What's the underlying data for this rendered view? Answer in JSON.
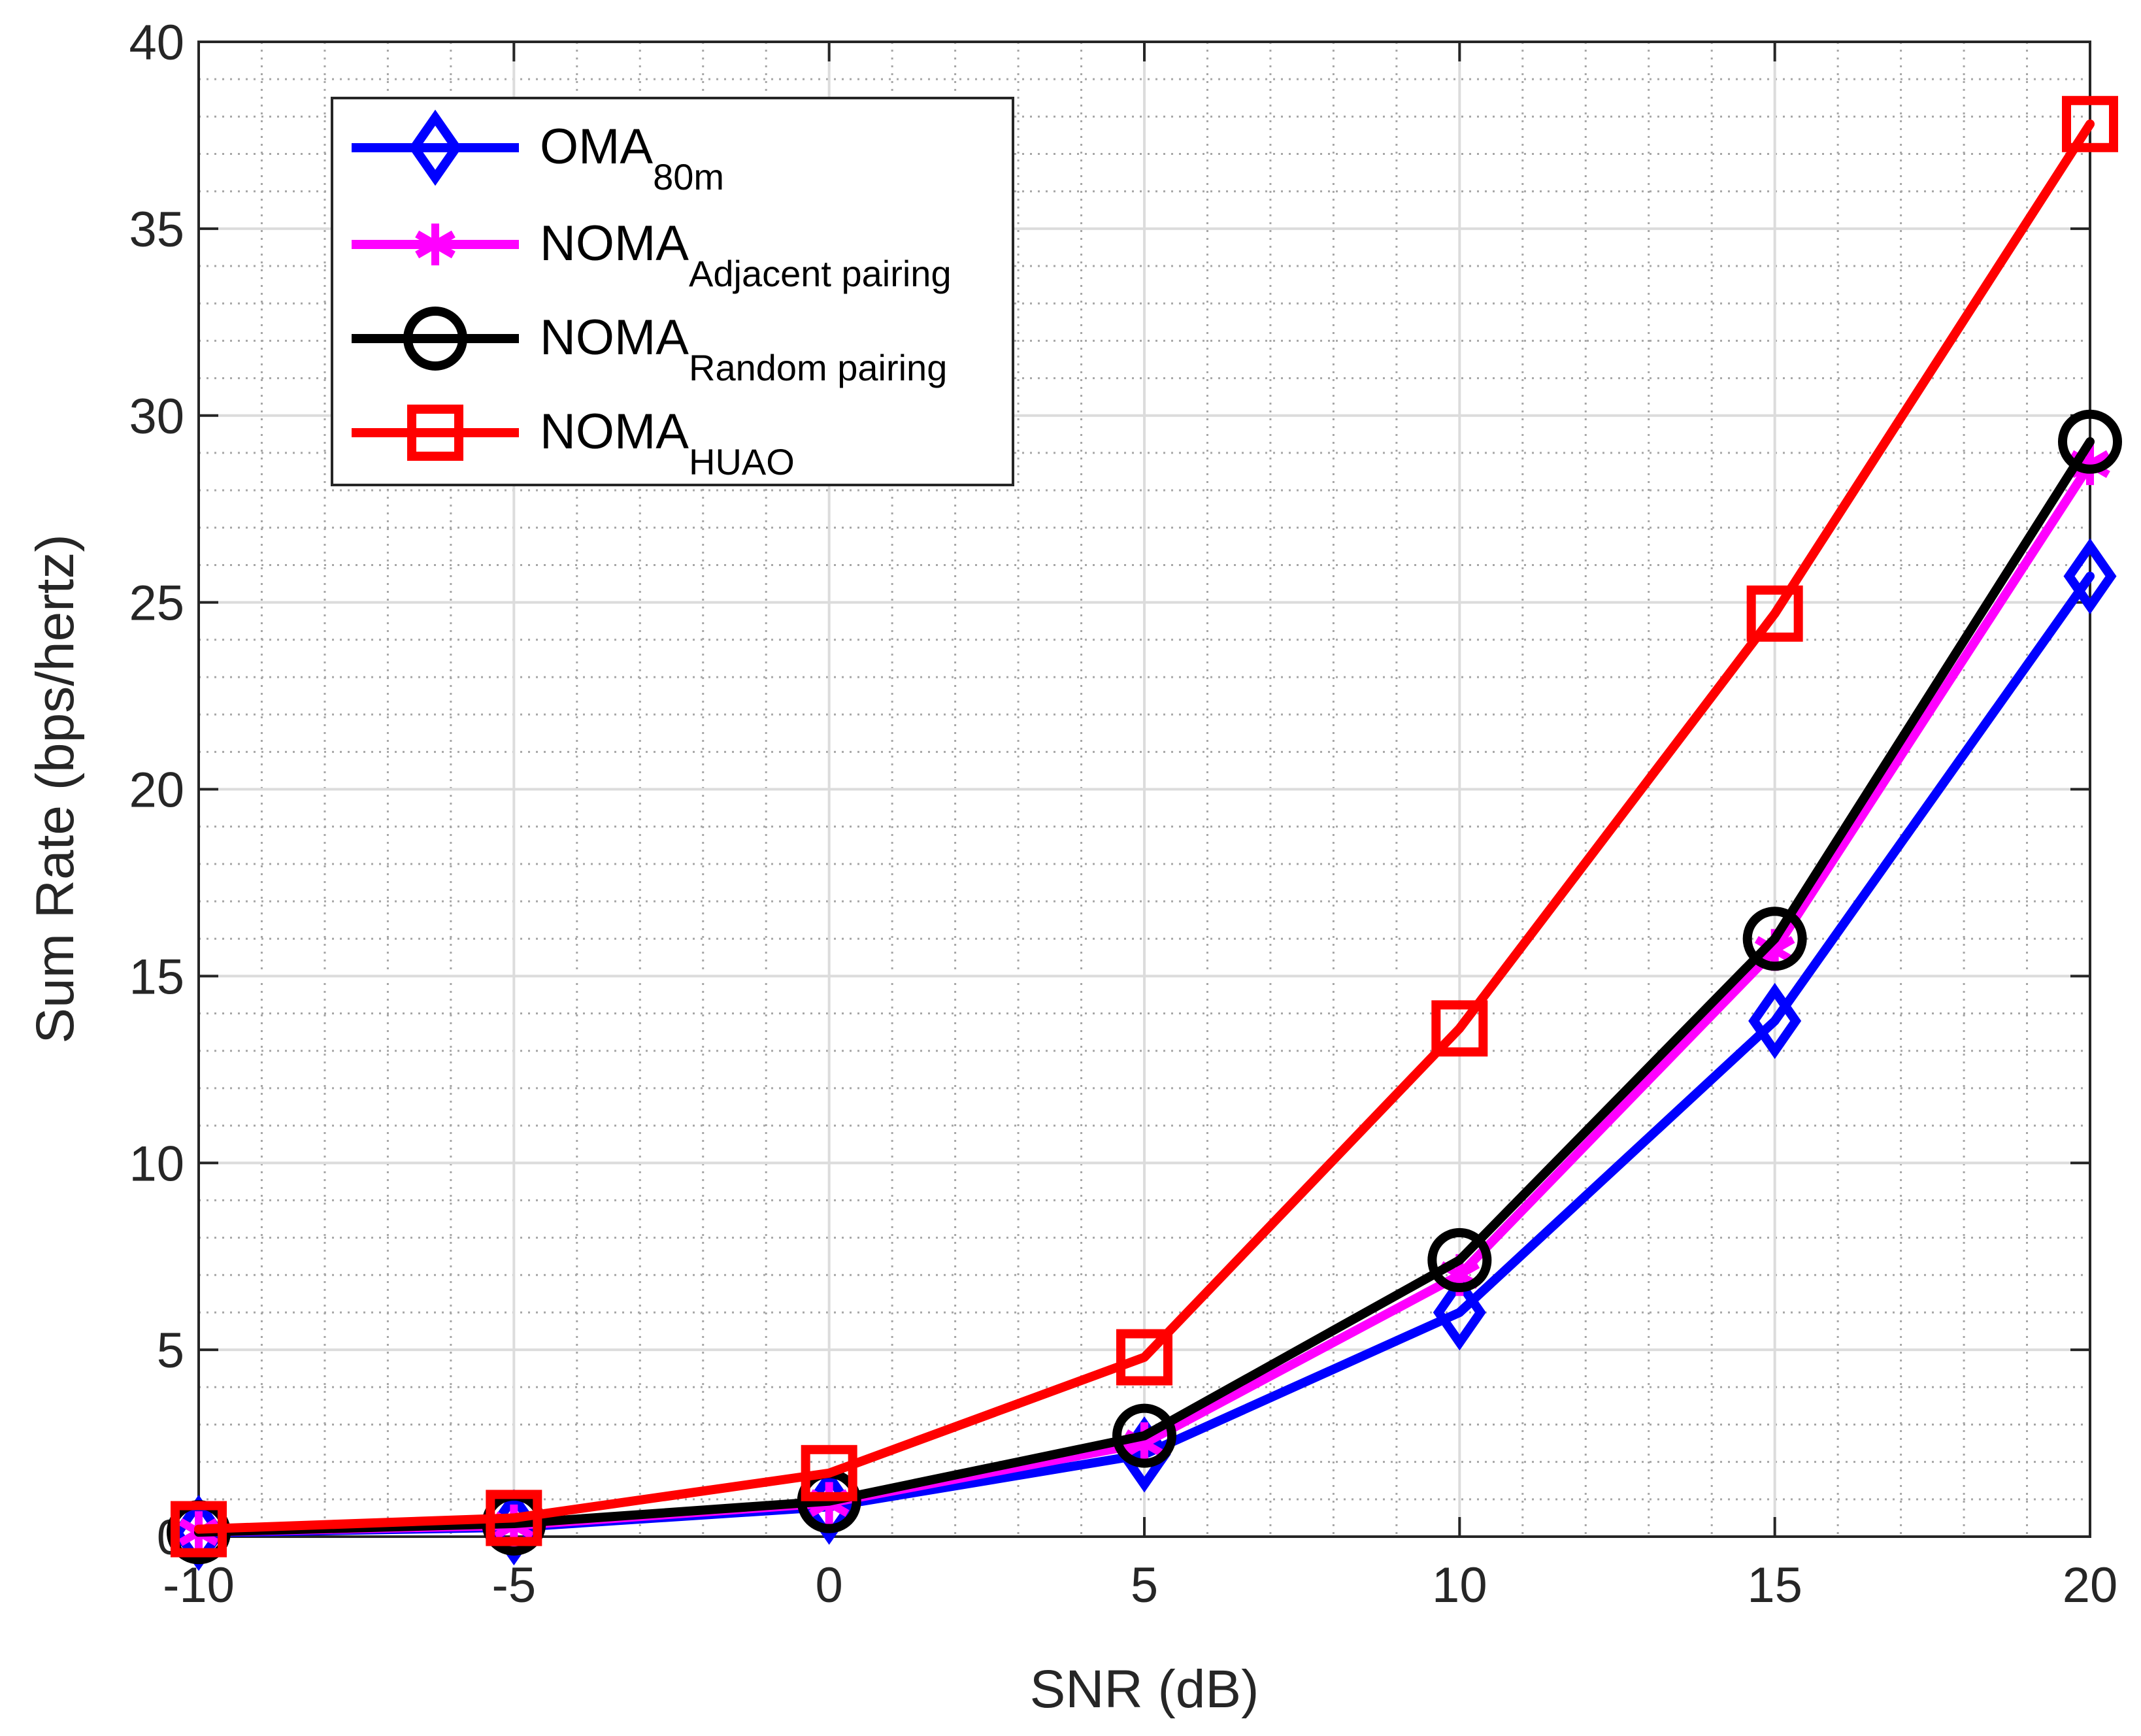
{
  "chart_data": {
    "type": "line",
    "title": "",
    "xlabel": "SNR (dB)",
    "ylabel": "Sum Rate (bps/hertz)",
    "x": [
      -10,
      -5,
      0,
      5,
      10,
      15,
      20
    ],
    "xlim": [
      -10,
      20
    ],
    "ylim": [
      0,
      40
    ],
    "xticks": [
      -10,
      -5,
      0,
      5,
      10,
      15,
      20
    ],
    "yticks": [
      0,
      5,
      10,
      15,
      20,
      25,
      30,
      35,
      40
    ],
    "xtick_labels": [
      "-10",
      "-5",
      "0",
      "5",
      "10",
      "15",
      "20"
    ],
    "ytick_labels": [
      "0",
      "5",
      "10",
      "15",
      "20",
      "25",
      "30",
      "35",
      "40"
    ],
    "grid": true,
    "minor_grid": true,
    "legend_position": "top-left",
    "series": [
      {
        "name": "OMA_80m",
        "label_main": "OMA",
        "label_sub": "80m",
        "color": "#0000ff",
        "marker": "diamond",
        "values": [
          0.1,
          0.25,
          0.8,
          2.2,
          6.0,
          13.8,
          25.7
        ]
      },
      {
        "name": "NOMA_Adjacent pairing",
        "label_main": "NOMA",
        "label_sub": "Adjacent pairing",
        "color": "#ff00ff",
        "marker": "asterisk",
        "values": [
          0.12,
          0.3,
          0.9,
          2.5,
          7.0,
          15.7,
          28.7
        ]
      },
      {
        "name": "NOMA_Random pairing",
        "label_main": "NOMA",
        "label_sub": "Random pairing",
        "color": "#000000",
        "marker": "circle",
        "values": [
          0.12,
          0.35,
          0.95,
          2.7,
          7.4,
          16.0,
          29.3
        ]
      },
      {
        "name": "NOMA_HUAO",
        "label_main": "NOMA",
        "label_sub": "HUAO",
        "color": "#ff0000",
        "marker": "square",
        "values": [
          0.2,
          0.5,
          1.7,
          4.8,
          13.6,
          24.7,
          37.8
        ]
      }
    ]
  }
}
